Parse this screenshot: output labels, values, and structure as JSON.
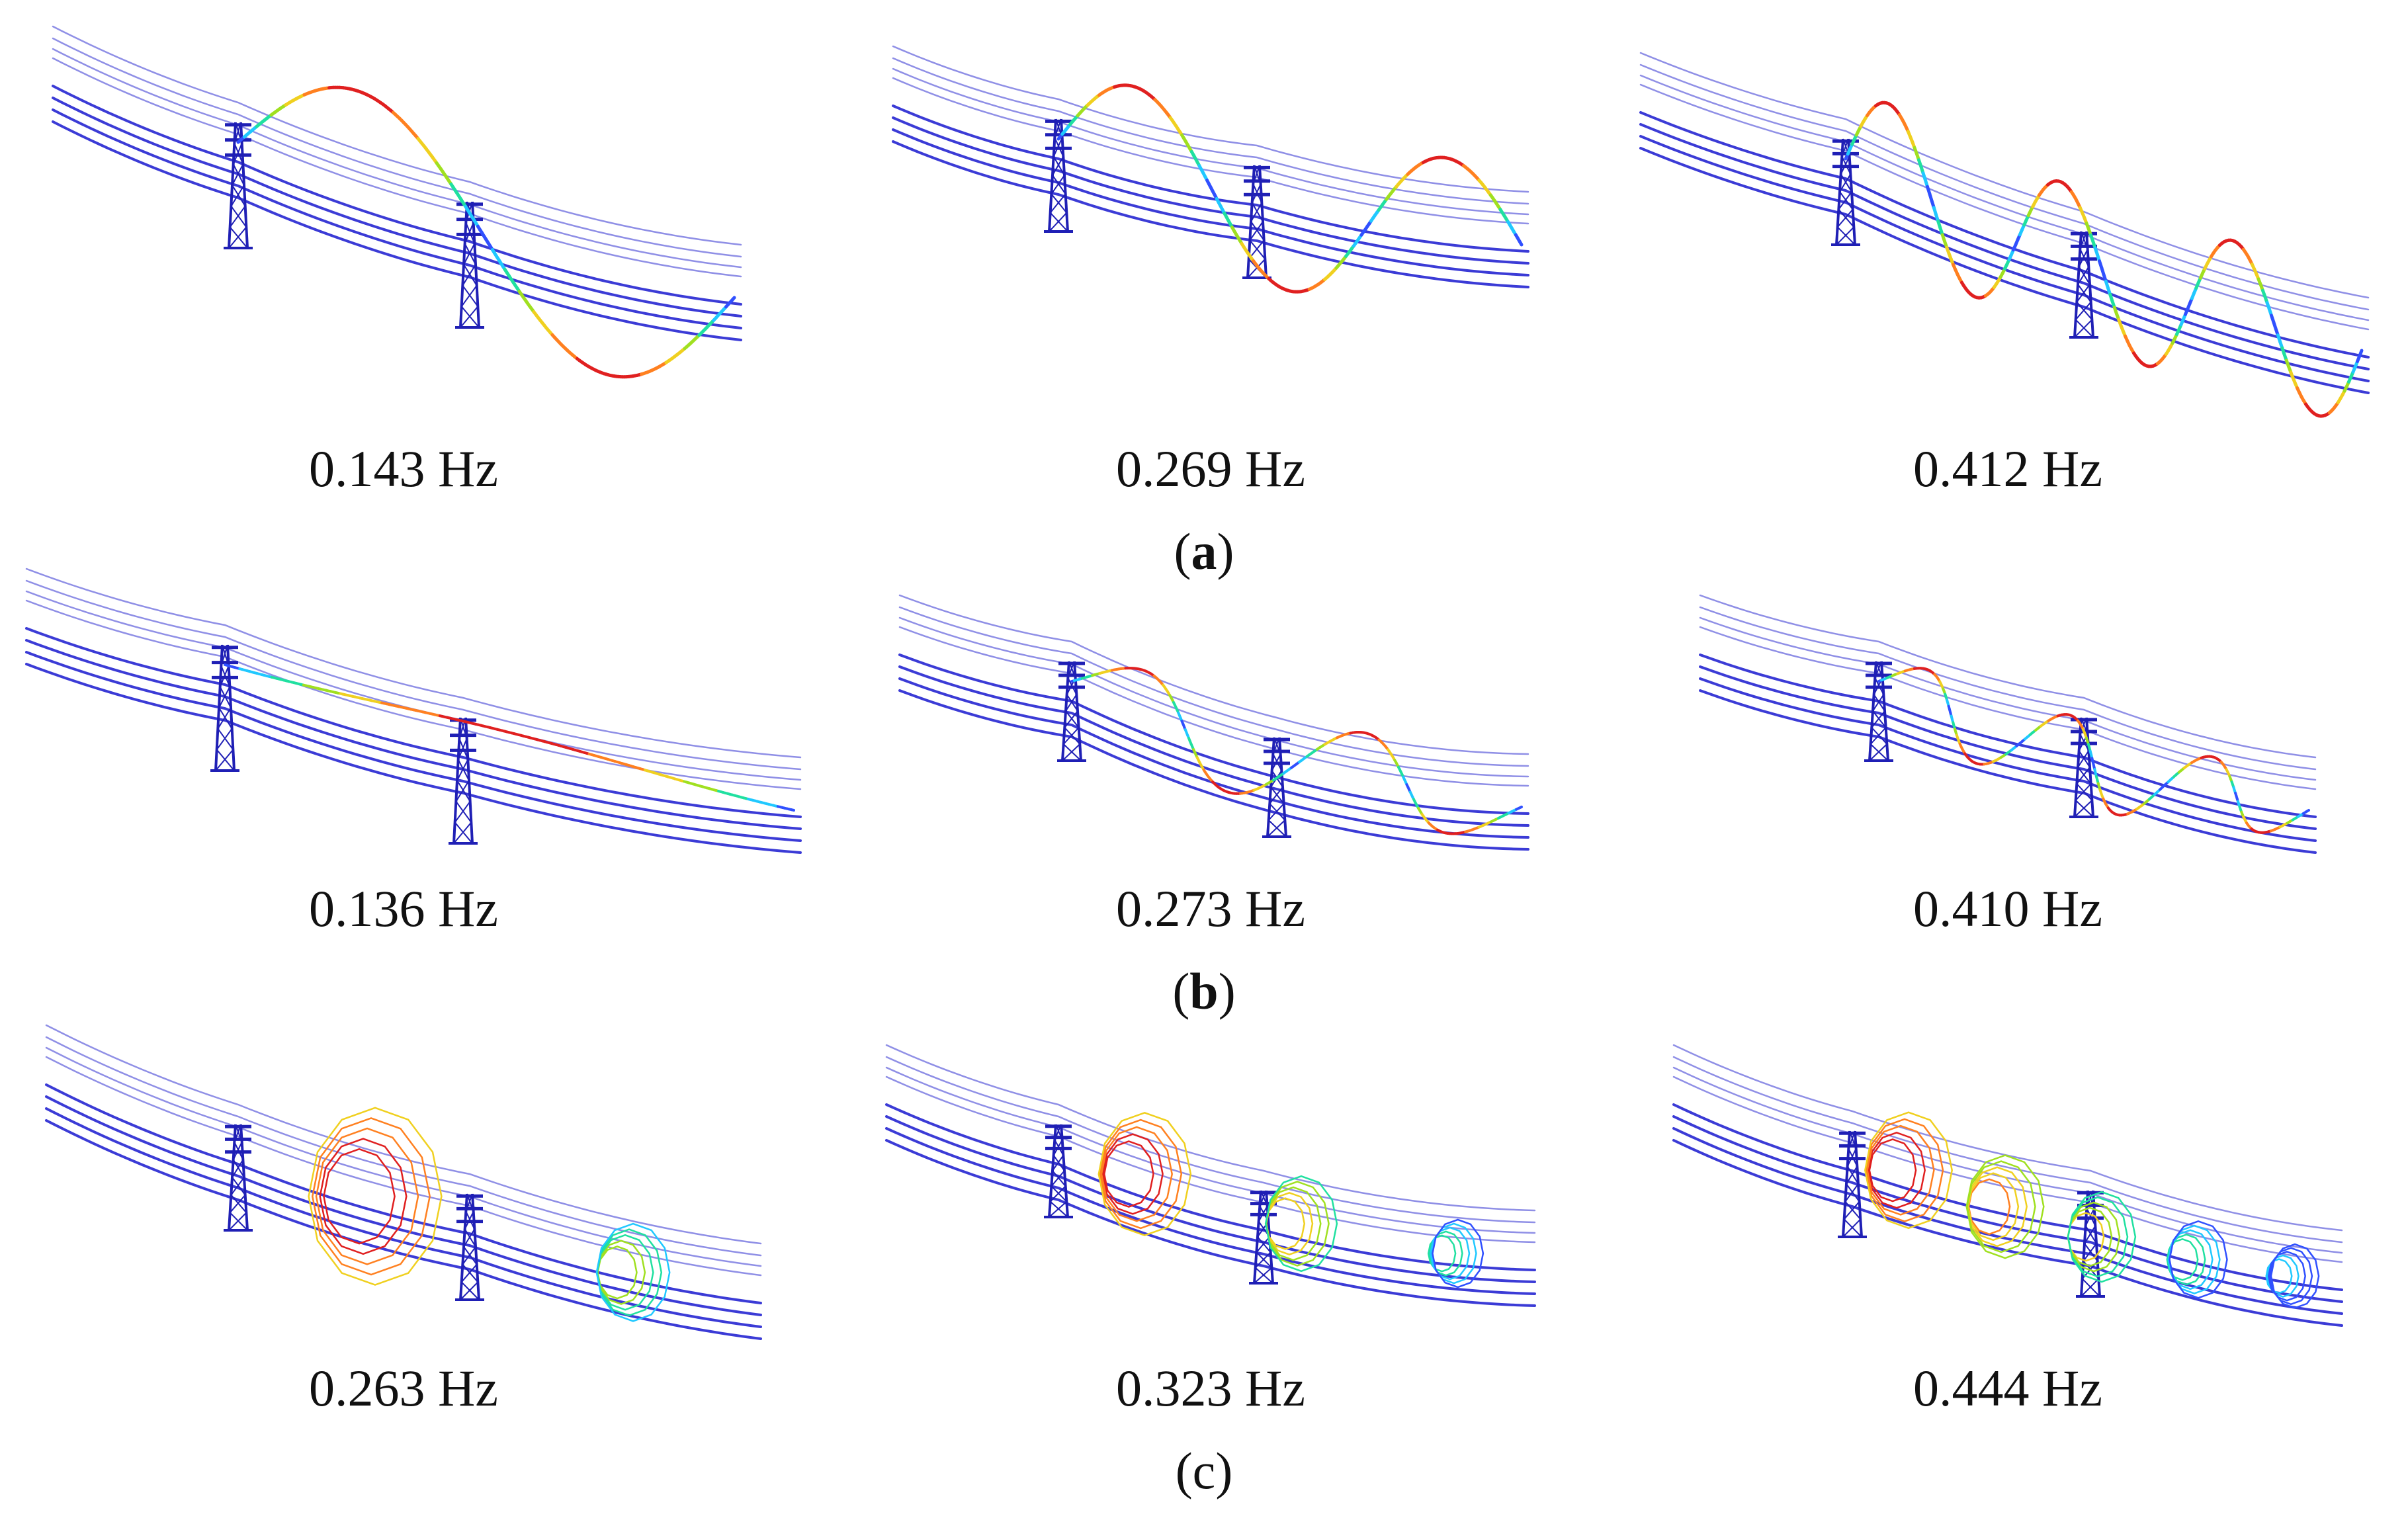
{
  "rows": [
    {
      "caption": {
        "open": "(",
        "letter": "a",
        "close": ")",
        "bold": true
      },
      "mode_family": "vertical",
      "panels": [
        {
          "frequency": "0.143 Hz",
          "half_waves": 2,
          "style": "vertical"
        },
        {
          "frequency": "0.269 Hz",
          "half_waves": 3,
          "style": "vertical"
        },
        {
          "frequency": "0.412 Hz",
          "half_waves": 6,
          "style": "vertical"
        }
      ]
    },
    {
      "caption": {
        "open": "(",
        "letter": "b",
        "close": ")",
        "bold": true
      },
      "mode_family": "swing",
      "panels": [
        {
          "frequency": "0.136 Hz",
          "half_waves": 1,
          "style": "swing"
        },
        {
          "frequency": "0.273 Hz",
          "half_waves": 4,
          "style": "swing"
        },
        {
          "frequency": "0.410 Hz",
          "half_waves": 6,
          "style": "swing"
        }
      ]
    },
    {
      "caption": {
        "open": "(c",
        "letter": "",
        "close": ")",
        "bold": false
      },
      "mode_family": "torsional",
      "panels": [
        {
          "frequency": "0.263 Hz",
          "half_waves": 2,
          "style": "torsional"
        },
        {
          "frequency": "0.323 Hz",
          "half_waves": 3,
          "style": "torsional"
        },
        {
          "frequency": "0.444 Hz",
          "half_waves": 5,
          "style": "torsional"
        }
      ]
    }
  ],
  "colors": {
    "conductor": "#3b3bd6",
    "conductor_light": "#8f8fe6",
    "tower": "#1f1fb5",
    "colormap": [
      "#3050ff",
      "#20c8ff",
      "#20e0a0",
      "#a0e020",
      "#f0d020",
      "#ff8020",
      "#e02020"
    ]
  }
}
